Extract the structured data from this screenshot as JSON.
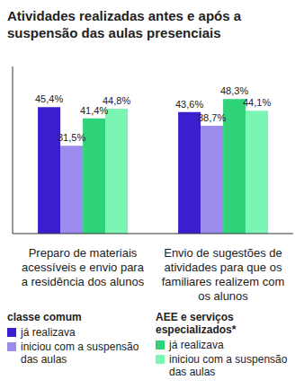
{
  "chart_data": {
    "type": "bar",
    "title": "Atividades realizadas antes e após a suspensão das aulas presenciais",
    "categories": [
      "Preparo de materiais acessíveis e envio para a residência dos alunos",
      "Envio de sugestões de atividades para que os familiares realizem com os alunos"
    ],
    "series": [
      {
        "name": "já realizava",
        "group": "classe comum",
        "color": "#3a1fd1",
        "values": [
          45.4,
          43.6
        ],
        "value_labels": [
          "45,4%",
          "43,6%"
        ]
      },
      {
        "name": "iniciou com a suspensão das aulas",
        "group": "classe comum",
        "color": "#9d8bee",
        "values": [
          31.5,
          38.7
        ],
        "value_labels": [
          "31,5%",
          "38,7%"
        ]
      },
      {
        "name": "já realizava",
        "group": "AEE e serviços especializados*",
        "color": "#2ed37a",
        "values": [
          41.4,
          48.3
        ],
        "value_labels": [
          "41,4%",
          "48,3%"
        ]
      },
      {
        "name": "iniciou com a suspensão das aulas",
        "group": "AEE e serviços especializados*",
        "color": "#7cf5b4",
        "values": [
          44.8,
          44.1
        ],
        "value_labels": [
          "44,8%",
          "44,1%"
        ]
      }
    ],
    "ylim": [
      0,
      60
    ],
    "yticks": [
      0,
      60
    ],
    "grid": false,
    "data_labels": true,
    "tick_labels": false,
    "legend": "bottom"
  }
}
